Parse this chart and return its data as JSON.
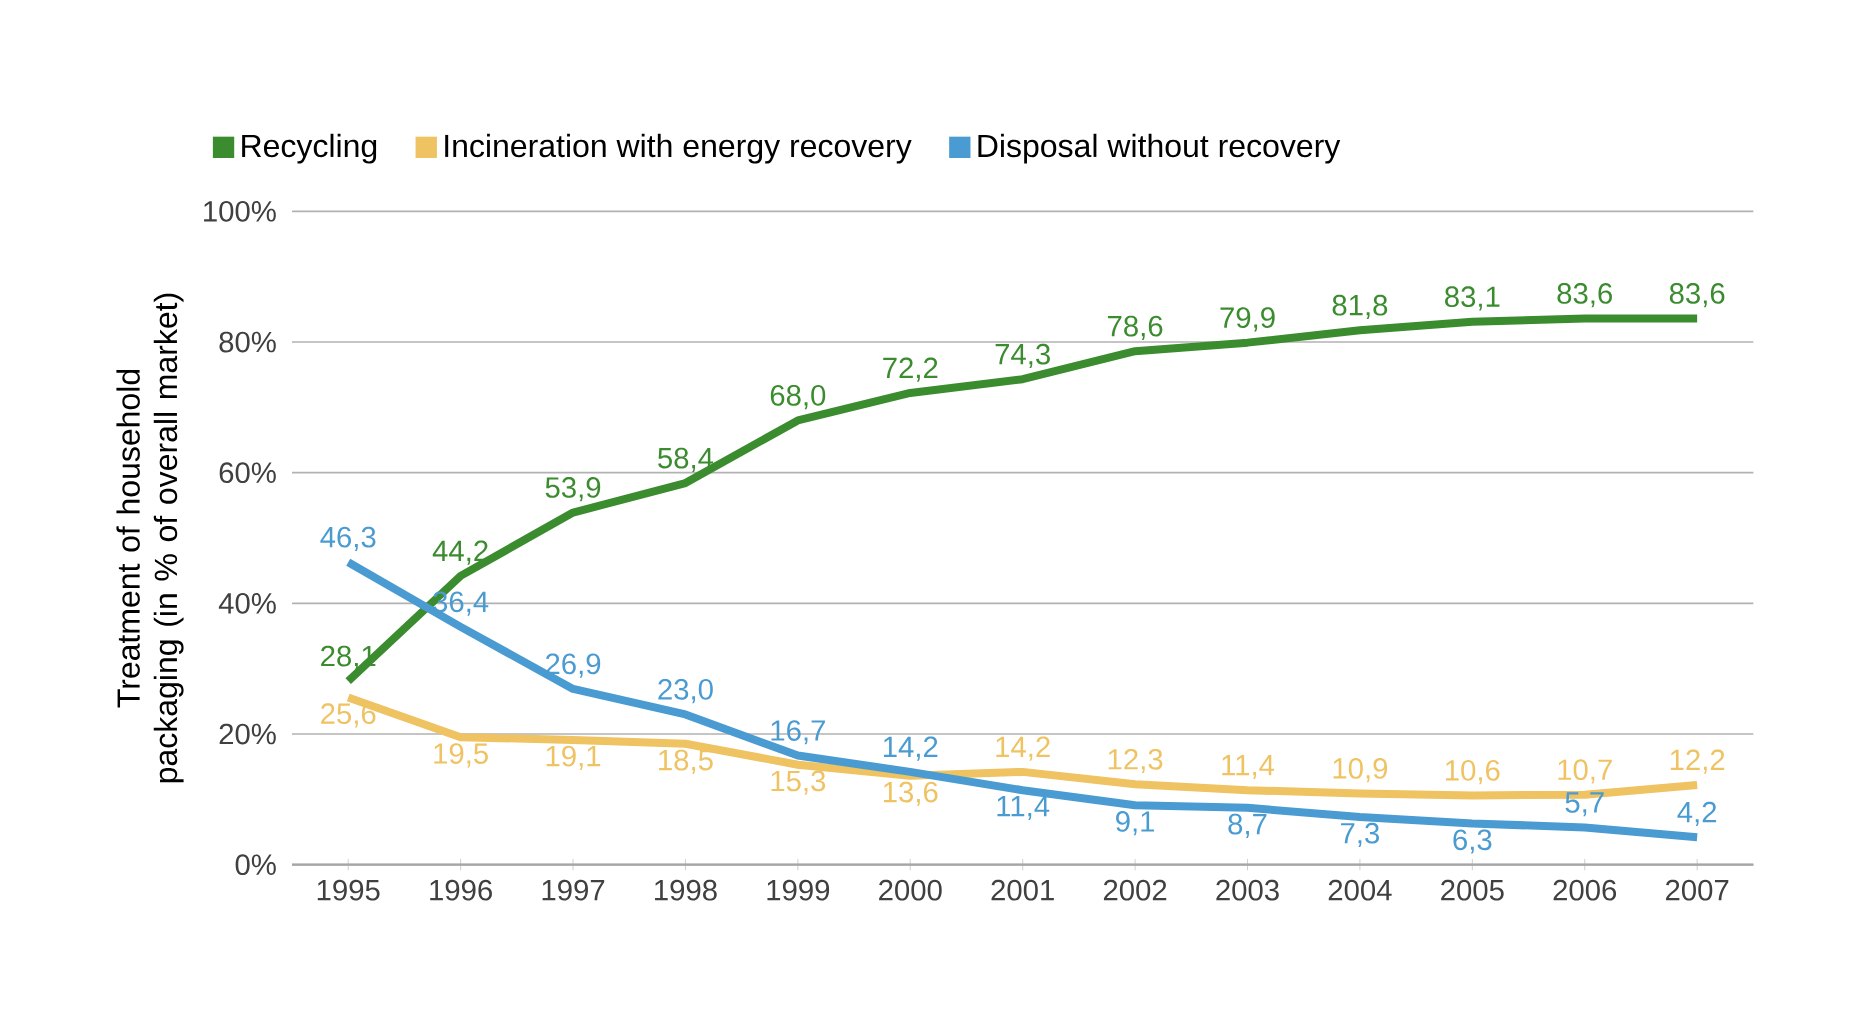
{
  "chart_data": {
    "type": "line",
    "ylabel": "Treatment of household packaging (in % of overall market)",
    "categories": [
      "1995",
      "1996",
      "1997",
      "1998",
      "1999",
      "2000",
      "2001",
      "2002",
      "2003",
      "2004",
      "2005",
      "2006",
      "2007"
    ],
    "series": [
      {
        "name": "Recycling",
        "color": "#3b8c2f",
        "values": [
          28.1,
          44.2,
          53.9,
          58.4,
          68.0,
          72.2,
          74.3,
          78.6,
          79.9,
          81.8,
          83.1,
          83.6,
          83.6
        ],
        "value_labels": [
          "28,1",
          "44,2",
          "53,9",
          "58,4",
          "68,0",
          "72,2",
          "74,3",
          "78,6",
          "79,9",
          "81,8",
          "83,1",
          "83,6",
          "83,6"
        ]
      },
      {
        "name": "Incineration with energy recovery",
        "color": "#efc262",
        "values": [
          25.6,
          19.5,
          19.1,
          18.5,
          15.3,
          13.6,
          14.2,
          12.3,
          11.4,
          10.9,
          10.6,
          10.7,
          12.2
        ],
        "value_labels": [
          "25,6",
          "19,5",
          "19,1",
          "18,5",
          "15,3",
          "13,6",
          "14,2",
          "12,3",
          "11,4",
          "10,9",
          "10,6",
          "10,7",
          "12,2"
        ]
      },
      {
        "name": "Disposal without recovery",
        "color": "#4a9bd1",
        "values": [
          46.3,
          36.4,
          26.9,
          23.0,
          16.7,
          14.2,
          11.4,
          9.1,
          8.7,
          7.3,
          6.3,
          5.7,
          4.2
        ],
        "value_labels": [
          "46,3",
          "36,4",
          "26,9",
          "23,0",
          "16,7",
          "14,2",
          "11,4",
          "9,1",
          "8,7",
          "7,3",
          "6,3",
          "5,7",
          "4,2"
        ]
      }
    ],
    "ylim": [
      0,
      100
    ],
    "yticks": [
      {
        "value": 0,
        "label": "0%"
      },
      {
        "value": 20,
        "label": "20%"
      },
      {
        "value": 40,
        "label": "40%"
      },
      {
        "value": 60,
        "label": "60%"
      },
      {
        "value": 80,
        "label": "80%"
      },
      {
        "value": 100,
        "label": "100%"
      }
    ],
    "grid": "y",
    "legend": "top left",
    "marker": "none",
    "line_style": "solid"
  }
}
